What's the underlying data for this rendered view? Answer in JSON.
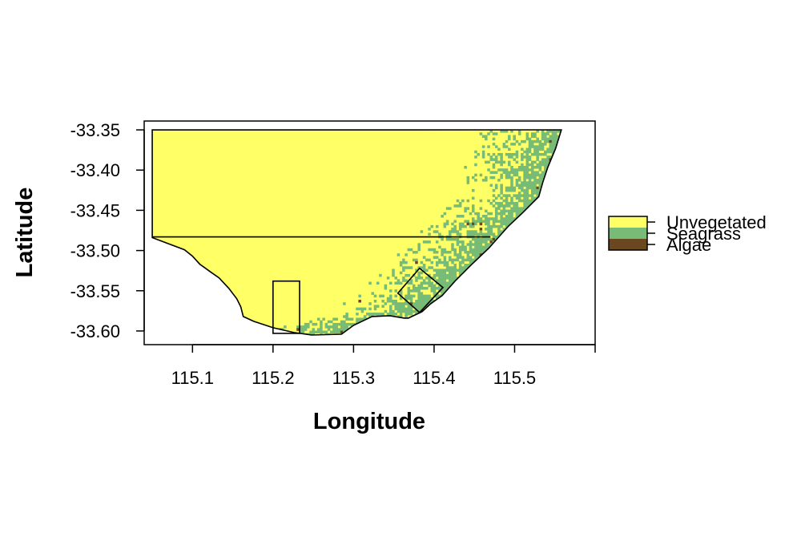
{
  "chart_data": {
    "type": "heatmap",
    "title": "",
    "xlabel": "Longitude",
    "ylabel": "Latitude",
    "x_ticks": [
      "115.1",
      "115.2",
      "115.3",
      "115.4",
      "115.5"
    ],
    "y_ticks": [
      "-33.35",
      "-33.40",
      "-33.45",
      "-33.50",
      "-33.55",
      "-33.60"
    ],
    "xlim": [
      115.04,
      115.6
    ],
    "ylim": [
      -33.617,
      -33.339
    ],
    "legend_position": "right",
    "legend": [
      {
        "label": "Unvegetated",
        "color": "#FFFF66"
      },
      {
        "label": "Seagrass",
        "color": "#77BB77"
      },
      {
        "label": "Algae",
        "color": "#6B4720"
      }
    ],
    "classes": [
      "Unvegetated",
      "Seagrass",
      "Algae"
    ],
    "coastline": [
      [
        115.05,
        -33.484
      ],
      [
        115.066,
        -33.49
      ],
      [
        115.09,
        -33.499
      ],
      [
        115.1,
        -33.507
      ],
      [
        115.109,
        -33.517
      ],
      [
        115.123,
        -33.527
      ],
      [
        115.133,
        -33.534
      ],
      [
        115.145,
        -33.547
      ],
      [
        115.155,
        -33.56
      ],
      [
        115.16,
        -33.57
      ],
      [
        115.163,
        -33.582
      ],
      [
        115.176,
        -33.588
      ],
      [
        115.2,
        -33.596
      ],
      [
        115.226,
        -33.602
      ],
      [
        115.248,
        -33.605
      ],
      [
        115.285,
        -33.604
      ],
      [
        115.3,
        -33.593
      ],
      [
        115.323,
        -33.582
      ],
      [
        115.345,
        -33.581
      ],
      [
        115.363,
        -33.584
      ],
      [
        115.368,
        -33.584
      ],
      [
        115.385,
        -33.576
      ],
      [
        115.396,
        -33.566
      ],
      [
        115.41,
        -33.556
      ],
      [
        115.426,
        -33.538
      ],
      [
        115.446,
        -33.518
      ],
      [
        115.468,
        -33.497
      ],
      [
        115.492,
        -33.47
      ],
      [
        115.51,
        -33.453
      ],
      [
        115.53,
        -33.433
      ],
      [
        115.535,
        -33.415
      ],
      [
        115.541,
        -33.397
      ],
      [
        115.551,
        -33.373
      ],
      [
        115.558,
        -33.35
      ]
    ],
    "offshore_edge": -33.35,
    "western_edge": 115.05,
    "seagrass_band_width_deg": 0.115,
    "boundaries": {
      "divider_line": {
        "lat": -33.483,
        "lon_from": 115.05,
        "lon_to": 115.47
      },
      "inner_box": {
        "lon_min": 115.2,
        "lon_max": 115.233,
        "lat_min": -33.603,
        "lat_max": -33.538
      },
      "rotated_box": [
        [
          115.355,
          -33.553
        ],
        [
          115.382,
          -33.522
        ],
        [
          115.411,
          -33.546
        ],
        [
          115.382,
          -33.577
        ]
      ]
    }
  }
}
